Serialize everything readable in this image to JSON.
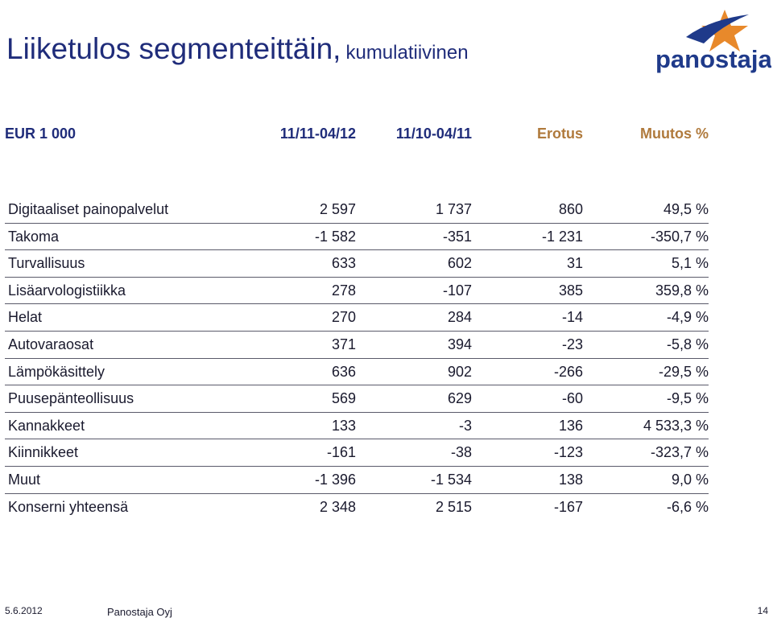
{
  "title": {
    "main": "Liiketulos segmenteittäin,",
    "sub": "kumulatiivinen"
  },
  "logo": {
    "text": "panostaja",
    "colors": {
      "navy": "#1f3a8a",
      "orange": "#e8892b"
    }
  },
  "header": [
    "EUR 1 000",
    "11/11-04/12",
    "11/10-04/11",
    "Erotus",
    "Muutos %"
  ],
  "rows": [
    [
      "Digitaaliset painopalvelut",
      "2 597",
      "1 737",
      "860",
      "49,5 %"
    ],
    [
      "Takoma",
      "-1 582",
      "-351",
      "-1 231",
      "-350,7 %"
    ],
    [
      "Turvallisuus",
      "633",
      "602",
      "31",
      "5,1 %"
    ],
    [
      "Lisäarvologistiikka",
      "278",
      "-107",
      "385",
      "359,8 %"
    ],
    [
      "Helat",
      "270",
      "284",
      "-14",
      "-4,9 %"
    ],
    [
      "Autovaraosat",
      "371",
      "394",
      "-23",
      "-5,8 %"
    ],
    [
      "Lämpökäsittely",
      "636",
      "902",
      "-266",
      "-29,5 %"
    ],
    [
      "Puusepänteollisuus",
      "569",
      "629",
      "-60",
      "-9,5 %"
    ],
    [
      "Kannakkeet",
      "133",
      "-3",
      "136",
      "4 533,3 %"
    ],
    [
      "Kiinnikkeet",
      "-161",
      "-38",
      "-123",
      "-323,7 %"
    ],
    [
      "Muut",
      "-1 396",
      "-1 534",
      "138",
      "9,0 %"
    ],
    [
      "Konserni yhteensä",
      "2 348",
      "2 515",
      "-167",
      "-6,6 %"
    ]
  ],
  "footer": {
    "date": "5.6.2012",
    "company": "Panostaja Oyj",
    "page": "14"
  }
}
